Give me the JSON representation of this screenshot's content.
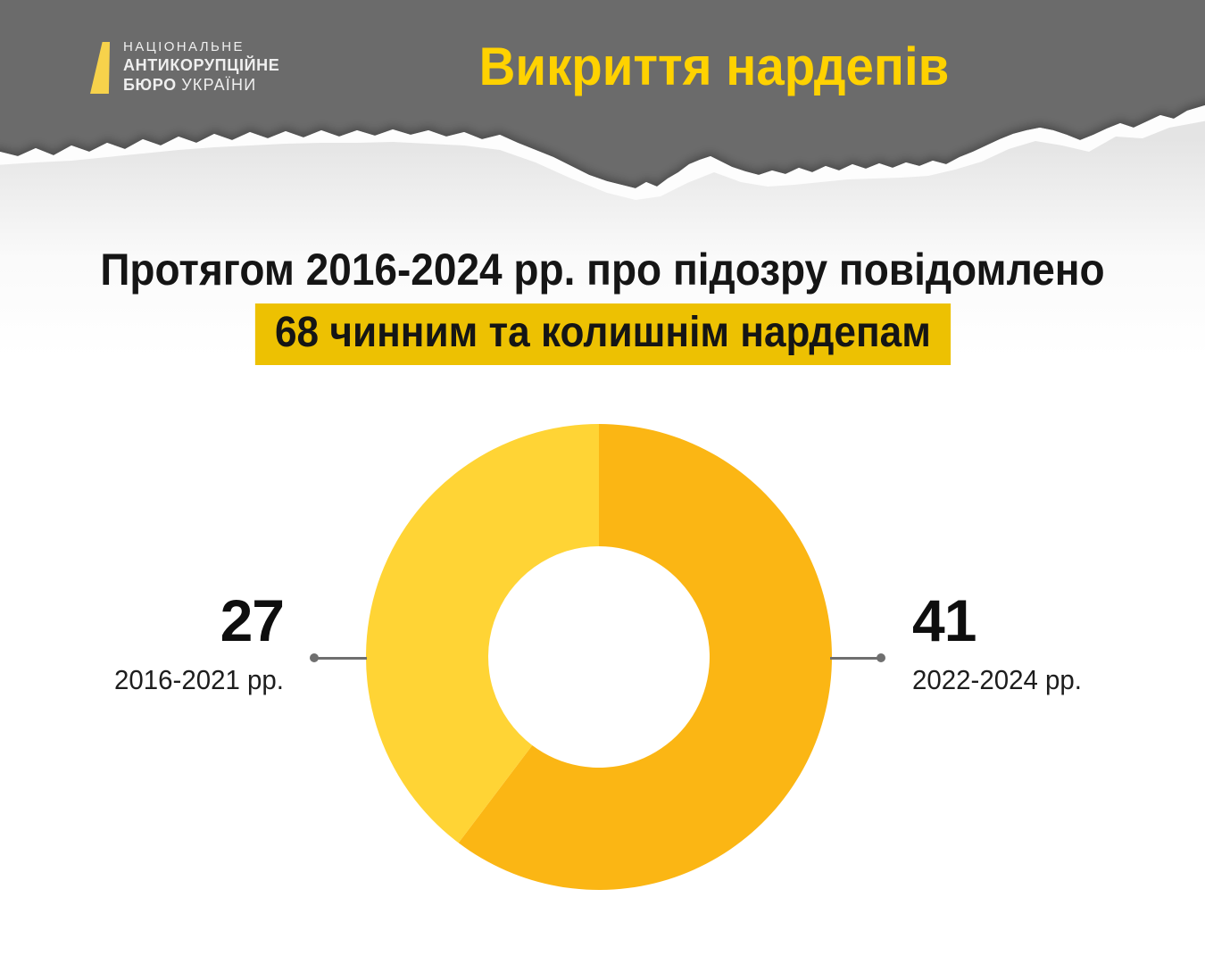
{
  "header": {
    "logo": {
      "line1": "НАЦІОНАЛЬНЕ",
      "line2": "АНТИКОРУПЦІЙНЕ",
      "line3_bold": "БЮРО",
      "line3_light": "УКРАЇНИ"
    },
    "title": "Викриття нардепів"
  },
  "main": {
    "heading": "Протягом 2016-2024 рр. про підозру повідомлено",
    "highlight": "68 чинним та колишнім нардепам"
  },
  "colors": {
    "header_bg": "#6B6B6B",
    "title": "#FFD200",
    "logo_mark": "#F7D24B",
    "logo_text": "#EFEFEF",
    "highlight_bg": "#EDC102",
    "heading_text": "#151515",
    "callout_number": "#0E0E0E",
    "callout_label": "#1D1D1D"
  },
  "chart_data": {
    "type": "pie",
    "subtype": "donut",
    "title": "Протягом 2016-2024 рр. про підозру повідомлено 68 чинним та колишнім нардепам",
    "total": 68,
    "categories": [
      "2022-2024 рр.",
      "2016-2021 рр."
    ],
    "values": [
      41,
      27
    ],
    "slices": [
      {
        "label": "2022-2024 рр.",
        "value": 41,
        "color": "#FBB614",
        "side": "right"
      },
      {
        "label": "2016-2021 рр.",
        "value": 27,
        "color": "#FFD435",
        "side": "left"
      }
    ],
    "start_angle_deg": 0,
    "direction": "clockwise",
    "inner_radius_ratio": 0.475,
    "legend_position": "callouts-left-right",
    "connector_color": "#6F6F6F"
  }
}
